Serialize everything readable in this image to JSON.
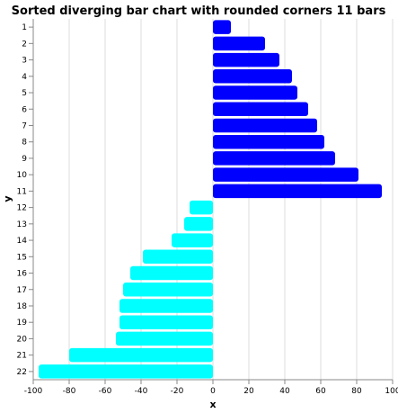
{
  "chart_data": {
    "type": "bar",
    "orientation": "horizontal",
    "title": "Sorted diverging bar chart with rounded corners 11 bars",
    "xlabel": "x",
    "ylabel": "y",
    "xlim": [
      -100,
      100
    ],
    "x_ticks": [
      -100,
      -80,
      -60,
      -40,
      -20,
      0,
      20,
      40,
      60,
      80,
      100
    ],
    "grid": true,
    "categories": [
      "1",
      "2",
      "3",
      "4",
      "5",
      "6",
      "7",
      "8",
      "9",
      "10",
      "11",
      "12",
      "13",
      "14",
      "15",
      "16",
      "17",
      "18",
      "19",
      "20",
      "21",
      "22"
    ],
    "values": [
      10,
      29,
      37,
      44,
      47,
      53,
      58,
      62,
      68,
      81,
      94,
      -13,
      -16,
      -23,
      -39,
      -46,
      -50,
      -52,
      -52,
      -54,
      -80,
      -97
    ],
    "colors": {
      "positive": "#0000ff",
      "negative": "#00ffff"
    }
  }
}
